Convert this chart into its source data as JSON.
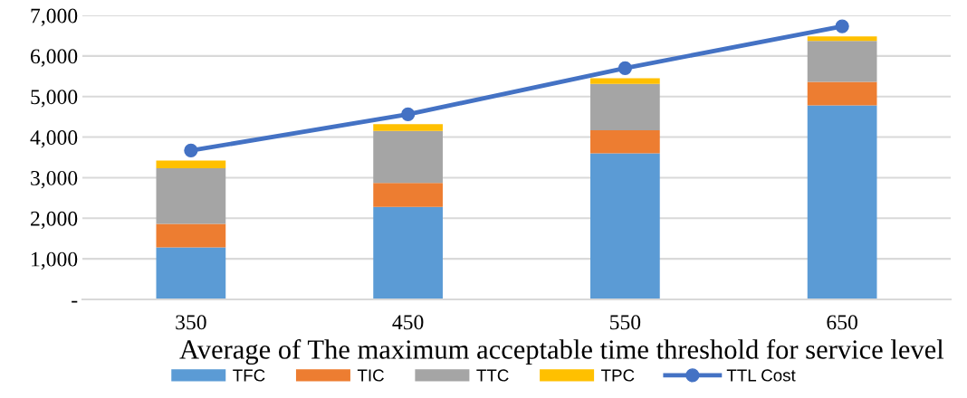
{
  "chart_data": {
    "type": "bar",
    "stacked": true,
    "xlabel": "Average of The maximum acceptable time threshold for service level",
    "categories": [
      "350",
      "450",
      "550",
      "650"
    ],
    "series": [
      {
        "name": "TFC",
        "color": "#5b9bd5",
        "values": [
          1280,
          2280,
          3600,
          4780
        ]
      },
      {
        "name": "TIC",
        "color": "#ed7d31",
        "values": [
          580,
          590,
          570,
          580
        ]
      },
      {
        "name": "TTC",
        "color": "#a5a5a5",
        "values": [
          1370,
          1280,
          1140,
          1010
        ]
      },
      {
        "name": "TPC",
        "color": "#ffc000",
        "values": [
          190,
          170,
          140,
          110
        ]
      },
      {
        "name": "TTL Cost",
        "type": "line",
        "color": "#4472c4",
        "marker": "circle",
        "values": [
          3670,
          4560,
          5700,
          6730
        ]
      }
    ],
    "ylim": [
      0,
      7000
    ],
    "yticks": [
      {
        "value": 0,
        "label": "-"
      },
      {
        "value": 1000,
        "label": "1,000"
      },
      {
        "value": 2000,
        "label": "2,000"
      },
      {
        "value": 3000,
        "label": "3,000"
      },
      {
        "value": 4000,
        "label": "4,000"
      },
      {
        "value": 5000,
        "label": "5,000"
      },
      {
        "value": 6000,
        "label": "6,000"
      },
      {
        "value": 7000,
        "label": "7,000"
      }
    ],
    "grid": "y",
    "legend": "bottom"
  }
}
